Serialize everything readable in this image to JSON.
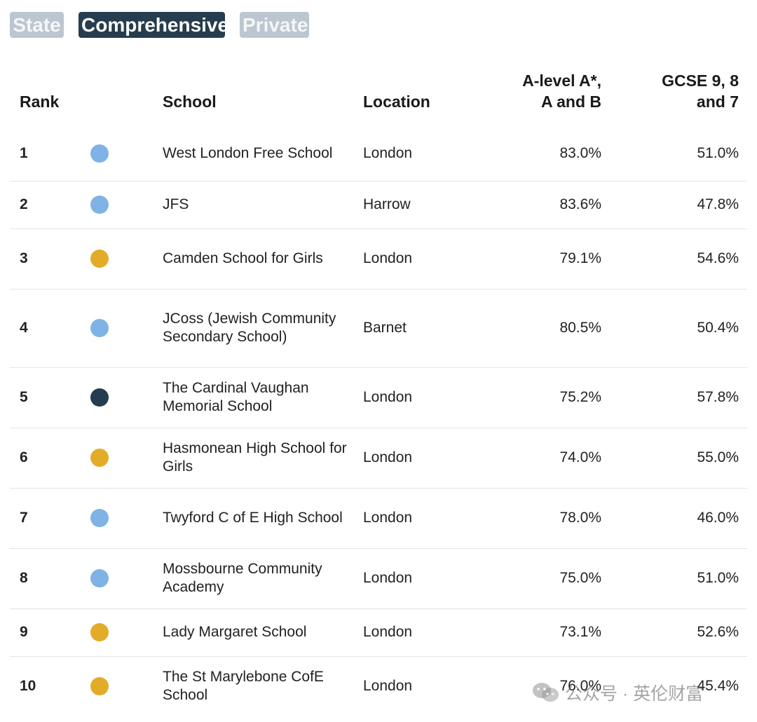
{
  "legend": {
    "state": "State",
    "comprehensive": "Comprehensive",
    "private": "Private"
  },
  "colors": {
    "state": "#7fb2e5",
    "comprehensive": "#253d4e",
    "private": "#e3ac28"
  },
  "headers": {
    "rank": "Rank",
    "school": "School",
    "location": "Location",
    "alevel_line1": "A-level A*,",
    "alevel_line2": "A and B",
    "gcse_line1": "GCSE 9, 8",
    "gcse_line2": "and 7"
  },
  "rows": [
    {
      "rank": "1",
      "type": "state",
      "school": "West London Free School",
      "location": "London",
      "alevel": "83.0%",
      "gcse": "51.0%"
    },
    {
      "rank": "2",
      "type": "state",
      "school": "JFS",
      "location": "Harrow",
      "alevel": "83.6%",
      "gcse": "47.8%"
    },
    {
      "rank": "3",
      "type": "private",
      "school": "Camden School for Girls",
      "location": "London",
      "alevel": "79.1%",
      "gcse": "54.6%"
    },
    {
      "rank": "4",
      "type": "state",
      "school": "JCoss (Jewish Community Secondary School)",
      "location": "Barnet",
      "alevel": "80.5%",
      "gcse": "50.4%"
    },
    {
      "rank": "5",
      "type": "comprehensive",
      "school": "The Cardinal Vaughan Memorial School",
      "location": "London",
      "alevel": "75.2%",
      "gcse": "57.8%"
    },
    {
      "rank": "6",
      "type": "private",
      "school": "Hasmonean High School for Girls",
      "location": "London",
      "alevel": "74.0%",
      "gcse": "55.0%"
    },
    {
      "rank": "7",
      "type": "state",
      "school": "Twyford C of E High School",
      "location": "London",
      "alevel": "78.0%",
      "gcse": "46.0%"
    },
    {
      "rank": "8",
      "type": "state",
      "school": "Mossbourne Community Academy",
      "location": "London",
      "alevel": "75.0%",
      "gcse": "51.0%"
    },
    {
      "rank": "9",
      "type": "private",
      "school": "Lady Margaret School",
      "location": "London",
      "alevel": "73.1%",
      "gcse": "52.6%"
    },
    {
      "rank": "10",
      "type": "private",
      "school": "The St Marylebone CofE School",
      "location": "London",
      "alevel": "76.0%",
      "gcse": "45.4%"
    }
  ],
  "watermark": {
    "icon": "wechat-icon",
    "text": "公众号 · 英伦财富"
  }
}
